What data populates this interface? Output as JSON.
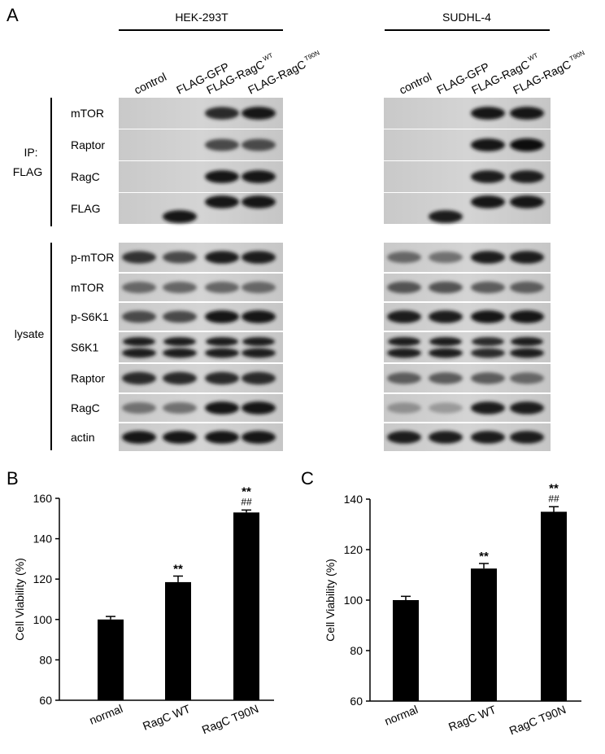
{
  "panel_labels": {
    "a": "A",
    "b": "B",
    "c": "C"
  },
  "blot": {
    "cell_lines": [
      "HEK-293T",
      "SUDHL-4"
    ],
    "lanes": [
      {
        "text": "control",
        "sup": ""
      },
      {
        "text": "FLAG-GFP",
        "sup": ""
      },
      {
        "text": "FLAG-RagC",
        "sup": "WT"
      },
      {
        "text": "FLAG-RagC",
        "sup": "T90N"
      }
    ],
    "group_ip_line1": "IP:",
    "group_ip_line2": "FLAG",
    "group_lysate": "lysate",
    "ip_rows": [
      "mTOR",
      "Raptor",
      "RagC",
      "FLAG"
    ],
    "lysate_rows": [
      "p-mTOR",
      "mTOR",
      "p-S6K1",
      "S6K1",
      "Raptor",
      "RagC",
      "actin"
    ]
  },
  "chart_data": [
    {
      "type": "bar",
      "panel": "B",
      "categories": [
        "normal",
        "RagC WT",
        "RagC T90N"
      ],
      "values": [
        100,
        118.5,
        153
      ],
      "errors": [
        1.5,
        3,
        1.2
      ],
      "annotations": [
        [
          "",
          ""
        ],
        [
          "**",
          ""
        ],
        [
          "**",
          "##"
        ]
      ],
      "ylabel": "Cell Viability (%)",
      "ylim": [
        60,
        160
      ],
      "yticks": [
        60,
        80,
        100,
        120,
        140,
        160
      ],
      "bar_color": "#000000"
    },
    {
      "type": "bar",
      "panel": "C",
      "categories": [
        "normal",
        "RagC WT",
        "RagC T90N"
      ],
      "values": [
        100,
        112.5,
        135
      ],
      "errors": [
        1.5,
        2,
        2
      ],
      "annotations": [
        [
          "",
          ""
        ],
        [
          "**",
          ""
        ],
        [
          "**",
          "##"
        ]
      ],
      "ylabel": "Cell Viability (%)",
      "ylim": [
        60,
        140
      ],
      "yticks": [
        60,
        80,
        100,
        120,
        140
      ],
      "bar_color": "#000000"
    }
  ]
}
